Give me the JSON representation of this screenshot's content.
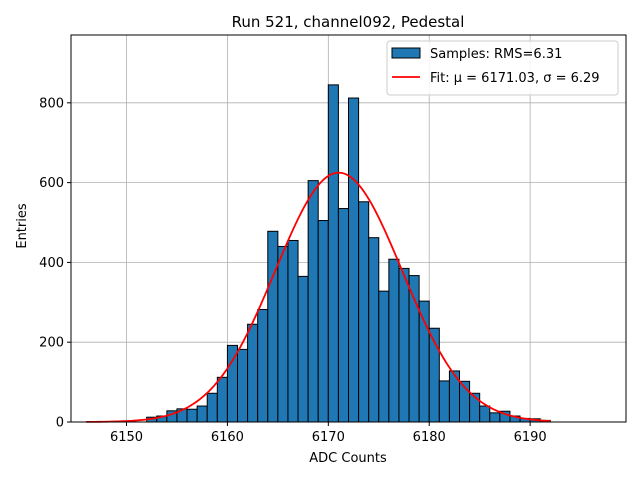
{
  "chart_data": {
    "type": "histogram",
    "title": "Run 521, channel092, Pedestal",
    "xlabel": "ADC Counts",
    "ylabel": "Entries",
    "xlim": [
      6144.5,
      6199.5
    ],
    "ylim": [
      0,
      970
    ],
    "xticks": [
      6150,
      6160,
      6170,
      6180,
      6190
    ],
    "yticks": [
      0,
      200,
      400,
      600,
      800
    ],
    "grid": true,
    "legend_position": "upper-right",
    "series": [
      {
        "name": "Samples: RMS=6.31",
        "kind": "bar",
        "color": "#1f77b4",
        "edgecolor": "#000000",
        "bin_width": 1,
        "bin_left_edges": [
          6152,
          6153,
          6154,
          6155,
          6156,
          6157,
          6158,
          6159,
          6160,
          6161,
          6162,
          6163,
          6164,
          6165,
          6166,
          6167,
          6168,
          6169,
          6170,
          6171,
          6172,
          6173,
          6174,
          6175,
          6176,
          6177,
          6178,
          6179,
          6180,
          6181,
          6182,
          6183,
          6184,
          6185,
          6186,
          6187,
          6188,
          6189,
          6190,
          6191
        ],
        "counts": [
          12,
          15,
          28,
          33,
          32,
          40,
          72,
          112,
          192,
          182,
          245,
          282,
          478,
          440,
          455,
          365,
          605,
          505,
          845,
          535,
          812,
          552,
          462,
          328,
          408,
          385,
          367,
          303,
          235,
          103,
          128,
          102,
          72,
          40,
          23,
          27,
          15,
          9,
          8,
          4
        ]
      },
      {
        "name": "Fit: μ = 6171.03, σ = 6.29",
        "kind": "line",
        "color": "#ff0000",
        "model": "gaussian",
        "mu": 6171.03,
        "sigma": 6.29,
        "amplitude": 625,
        "x_range": [
          6146,
          6192
        ]
      }
    ]
  }
}
